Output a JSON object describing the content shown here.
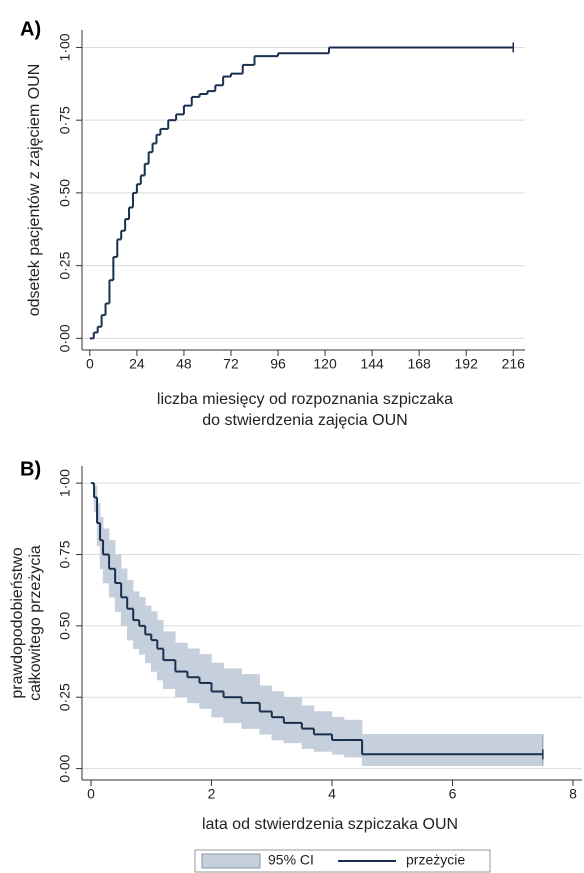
{
  "chart_data": [
    {
      "type": "step",
      "panel_label": "A)",
      "ylabel": "odsetek pacjentów z zajęciem OUN",
      "xlabel": [
        "liczba miesięcy od rozpoznania szpiczaka",
        "do stwierdzenia zajęcia OUN"
      ],
      "x": [
        0,
        2,
        4,
        6,
        8,
        10,
        12,
        14,
        16,
        18,
        20,
        22,
        24,
        26,
        28,
        30,
        32,
        34,
        36,
        40,
        44,
        48,
        52,
        56,
        60,
        64,
        68,
        72,
        78,
        84,
        96,
        122,
        216
      ],
      "values": [
        0,
        0.02,
        0.04,
        0.08,
        0.12,
        0.2,
        0.28,
        0.34,
        0.37,
        0.41,
        0.45,
        0.5,
        0.53,
        0.56,
        0.6,
        0.64,
        0.67,
        0.7,
        0.72,
        0.75,
        0.77,
        0.8,
        0.83,
        0.84,
        0.85,
        0.87,
        0.9,
        0.91,
        0.94,
        0.97,
        0.98,
        1.0,
        1.0
      ],
      "color": "#1a2f4f",
      "xlim": [
        -4,
        222
      ],
      "xticks": [
        0,
        24,
        48,
        72,
        96,
        120,
        144,
        168,
        192,
        216
      ],
      "ylim": [
        -0.04,
        1.06
      ],
      "yticks": [
        {
          "value": 0,
          "label": "0·00"
        },
        {
          "value": 0.25,
          "label": "0·25"
        },
        {
          "value": 0.5,
          "label": "0·50"
        },
        {
          "value": 0.75,
          "label": "0·75"
        },
        {
          "value": 1,
          "label": "1·00"
        }
      ],
      "grid": true
    },
    {
      "type": "step",
      "panel_label": "B)",
      "ylabel": [
        "prawdopodobieństwo",
        "całkowitego przeżycia"
      ],
      "xlabel": [
        "lata od stwierdzenia szpiczaka OUN"
      ],
      "x": [
        0,
        0.05,
        0.1,
        0.15,
        0.2,
        0.3,
        0.4,
        0.5,
        0.6,
        0.7,
        0.8,
        0.9,
        1.0,
        1.1,
        1.2,
        1.4,
        1.6,
        1.8,
        2.0,
        2.2,
        2.5,
        2.8,
        3.0,
        3.2,
        3.5,
        3.7,
        4.0,
        4.2,
        4.5,
        7.5
      ],
      "series": [
        {
          "name": "przeżycie",
          "color": "#1a2f4f",
          "values": [
            1,
            0.95,
            0.86,
            0.8,
            0.75,
            0.7,
            0.65,
            0.6,
            0.56,
            0.52,
            0.5,
            0.47,
            0.45,
            0.42,
            0.38,
            0.34,
            0.32,
            0.3,
            0.27,
            0.25,
            0.23,
            0.2,
            0.18,
            0.16,
            0.14,
            0.12,
            0.1,
            0.1,
            0.05,
            0.05
          ]
        }
      ],
      "band": {
        "name": "95% CI",
        "color": "#c5d0dc",
        "lower": [
          1,
          0.9,
          0.78,
          0.7,
          0.65,
          0.6,
          0.55,
          0.5,
          0.45,
          0.42,
          0.4,
          0.37,
          0.34,
          0.31,
          0.28,
          0.25,
          0.23,
          0.21,
          0.18,
          0.16,
          0.14,
          0.12,
          0.1,
          0.09,
          0.07,
          0.06,
          0.05,
          0.04,
          0.01,
          0.01
        ],
        "upper": [
          1,
          0.99,
          0.93,
          0.88,
          0.84,
          0.8,
          0.75,
          0.7,
          0.66,
          0.62,
          0.6,
          0.57,
          0.55,
          0.52,
          0.48,
          0.44,
          0.42,
          0.4,
          0.37,
          0.35,
          0.33,
          0.29,
          0.27,
          0.25,
          0.22,
          0.2,
          0.18,
          0.17,
          0.12,
          0.12
        ]
      },
      "xlim": [
        -0.15,
        8.15
      ],
      "xticks": [
        0,
        2,
        4,
        6,
        8
      ],
      "ylim": [
        -0.04,
        1.06
      ],
      "yticks": [
        {
          "value": 0,
          "label": "0·00"
        },
        {
          "value": 0.25,
          "label": "0·25"
        },
        {
          "value": 0.5,
          "label": "0·50"
        },
        {
          "value": 0.75,
          "label": "0·75"
        },
        {
          "value": 1,
          "label": "1·00"
        }
      ],
      "grid": true,
      "legend": "bottom"
    }
  ]
}
